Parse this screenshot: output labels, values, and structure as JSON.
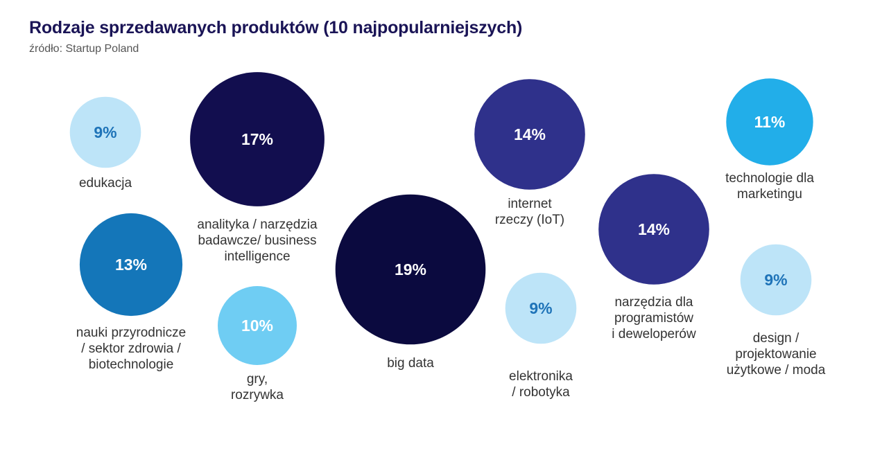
{
  "header": {
    "title": "Rodzaje sprzedawanych produktów (10 najpopularniejszych)",
    "source": "źródło: Startup Poland"
  },
  "chart_data": {
    "type": "bubble",
    "title": "Rodzaje sprzedawanych produktów (10 najpopularniejszych)",
    "unit": "%",
    "items": [
      {
        "label": [
          "edukacja"
        ],
        "value": 9,
        "display": "9%",
        "color": "#bde4f8",
        "text_color": "#1e73b8"
      },
      {
        "label": [
          "analityka / narzędzia",
          "badawcze/ business",
          "intelligence"
        ],
        "value": 17,
        "display": "17%",
        "color": "#120e4f",
        "text_color": "#ffffff"
      },
      {
        "label": [
          "big data"
        ],
        "value": 19,
        "display": "19%",
        "color": "#0b0a3f",
        "text_color": "#ffffff"
      },
      {
        "label": [
          "internet",
          "rzeczy (IoT)"
        ],
        "value": 14,
        "display": "14%",
        "color": "#2f318b",
        "text_color": "#ffffff"
      },
      {
        "label": [
          "technologie dla",
          "marketingu"
        ],
        "value": 11,
        "display": "11%",
        "color": "#22aee9",
        "text_color": "#ffffff"
      },
      {
        "label": [
          "nauki przyrodnicze",
          "/ sektor zdrowia /",
          "biotechnologie"
        ],
        "value": 13,
        "display": "13%",
        "color": "#1476b9",
        "text_color": "#ffffff"
      },
      {
        "label": [
          "gry,",
          "rozrywka"
        ],
        "value": 10,
        "display": "10%",
        "color": "#6fcdf3",
        "text_color": "#ffffff"
      },
      {
        "label": [
          "elektronika",
          "/ robotyka"
        ],
        "value": 9,
        "display": "9%",
        "color": "#bde4f8",
        "text_color": "#1e73b8"
      },
      {
        "label": [
          "narzędzia dla",
          "programistów",
          "i deweloperów"
        ],
        "value": 14,
        "display": "14%",
        "color": "#2f318b",
        "text_color": "#ffffff"
      },
      {
        "label": [
          "design /",
          "projektowanie",
          "użytkowe / moda"
        ],
        "value": 9,
        "display": "9%",
        "color": "#bde4f8",
        "text_color": "#1e73b8"
      }
    ]
  }
}
